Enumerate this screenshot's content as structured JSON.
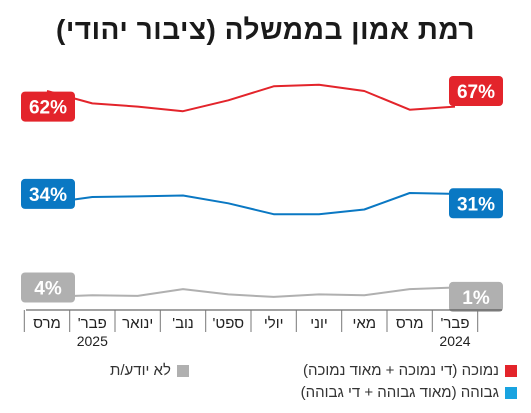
{
  "chart_data": {
    "type": "line",
    "title": "רמת אמון בממשלה (ציבור יהודי)",
    "categories": [
      "פבר'",
      "מרס",
      "מאי",
      "יוני",
      "יולי",
      "ספט'",
      "נוב'",
      "ינואר",
      "פבר'",
      "מרס"
    ],
    "years": [
      {
        "index": 0,
        "label": "2024"
      },
      {
        "index": 8,
        "label": "2025"
      }
    ],
    "ylim": [
      0,
      75
    ],
    "grid": false,
    "series": [
      {
        "key": "low",
        "color": "#e3242b",
        "values": [
          62,
          61,
          67,
          69,
          68.5,
          64,
          60.5,
          62,
          63,
          67
        ],
        "start_label": "62%",
        "end_label": "67%"
      },
      {
        "key": "high",
        "color": "#0a78c3",
        "values": [
          34,
          34.3,
          29,
          27.5,
          27.5,
          31,
          33.5,
          33.2,
          33,
          31
        ],
        "start_label": "34%",
        "end_label": "31%"
      },
      {
        "key": "dk",
        "color": "#b0b0b0",
        "values": [
          4,
          3.5,
          1.5,
          1.8,
          1,
          1.8,
          3.5,
          1.3,
          1.5,
          1
        ],
        "start_label": "4%",
        "end_label": "1%"
      }
    ],
    "legend": [
      {
        "label": "נמוכה (די נמוכה + מאוד נמוכה)",
        "color": "#e3242b"
      },
      {
        "label": "לא יודע/ת",
        "color": "#b0b0b0"
      },
      {
        "label": "גבוהה (מאוד גבוהה + די גבוהה)",
        "color": "#19a3e0"
      }
    ]
  }
}
